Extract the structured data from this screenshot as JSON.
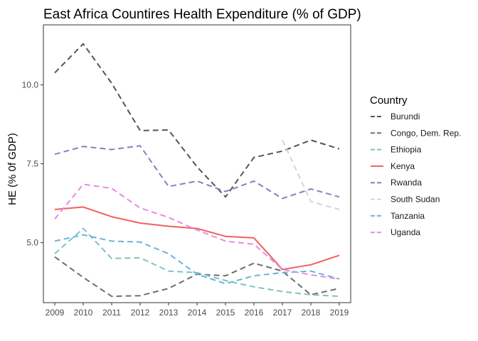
{
  "chart_data": {
    "type": "line",
    "title": "East Africa Countires Health Expenditure  (% of GDP)",
    "xlabel": "",
    "ylabel": "HE (% 0f GDP)",
    "x": [
      2009,
      2010,
      2011,
      2012,
      2013,
      2014,
      2015,
      2016,
      2017,
      2018,
      2019
    ],
    "xlim": [
      2008.6,
      2019.4
    ],
    "ylim": [
      3.1,
      11.9
    ],
    "yticks": [
      5.0,
      7.5,
      10.0
    ],
    "ytick_labels": [
      "5.0",
      "7.5",
      "10.0"
    ],
    "grid": false,
    "legend_title": "Country",
    "legend_position": "right",
    "series": [
      {
        "name": "Burundi",
        "color": "#555555",
        "dash": "8,5",
        "values": [
          10.38,
          11.3,
          10.05,
          8.55,
          8.57,
          7.4,
          6.45,
          7.7,
          7.9,
          8.25,
          7.97
        ]
      },
      {
        "name": "Congo, Dem. Rep.",
        "color": "#6e6e6e",
        "dash": "8,5",
        "values": [
          4.55,
          3.9,
          3.3,
          3.32,
          3.55,
          4.0,
          3.95,
          4.35,
          4.1,
          3.35,
          3.55
        ]
      },
      {
        "name": "Ethiopia",
        "color": "#7fc4bd",
        "dash": "8,5",
        "values": [
          4.65,
          5.45,
          4.5,
          4.52,
          4.1,
          4.05,
          3.8,
          3.6,
          3.45,
          3.35,
          3.3
        ]
      },
      {
        "name": "Kenya",
        "color": "#f06060",
        "dash": "",
        "values": [
          6.05,
          6.13,
          5.82,
          5.62,
          5.52,
          5.45,
          5.2,
          5.15,
          4.15,
          4.3,
          4.6
        ]
      },
      {
        "name": "Rwanda",
        "color": "#8e7cc3",
        "dash": "8,5",
        "values": [
          7.8,
          8.05,
          7.95,
          8.07,
          6.78,
          6.95,
          6.62,
          6.95,
          6.4,
          6.7,
          6.45
        ]
      },
      {
        "name": "South Sudan",
        "color": "#cfd8dc",
        "dash": "8,5",
        "values": [
          null,
          null,
          null,
          null,
          null,
          null,
          null,
          null,
          8.25,
          6.3,
          6.05
        ]
      },
      {
        "name": "Tanzania",
        "color": "#6ab3d9",
        "dash": "8,5",
        "values": [
          5.05,
          5.25,
          5.05,
          5.02,
          4.65,
          4.0,
          3.7,
          3.95,
          4.05,
          4.1,
          3.85
        ]
      },
      {
        "name": "Uganda",
        "color": "#e58be5",
        "dash": "8,5",
        "values": [
          5.75,
          6.85,
          6.72,
          6.1,
          5.8,
          5.4,
          5.05,
          4.95,
          4.15,
          3.98,
          3.85
        ]
      }
    ]
  }
}
